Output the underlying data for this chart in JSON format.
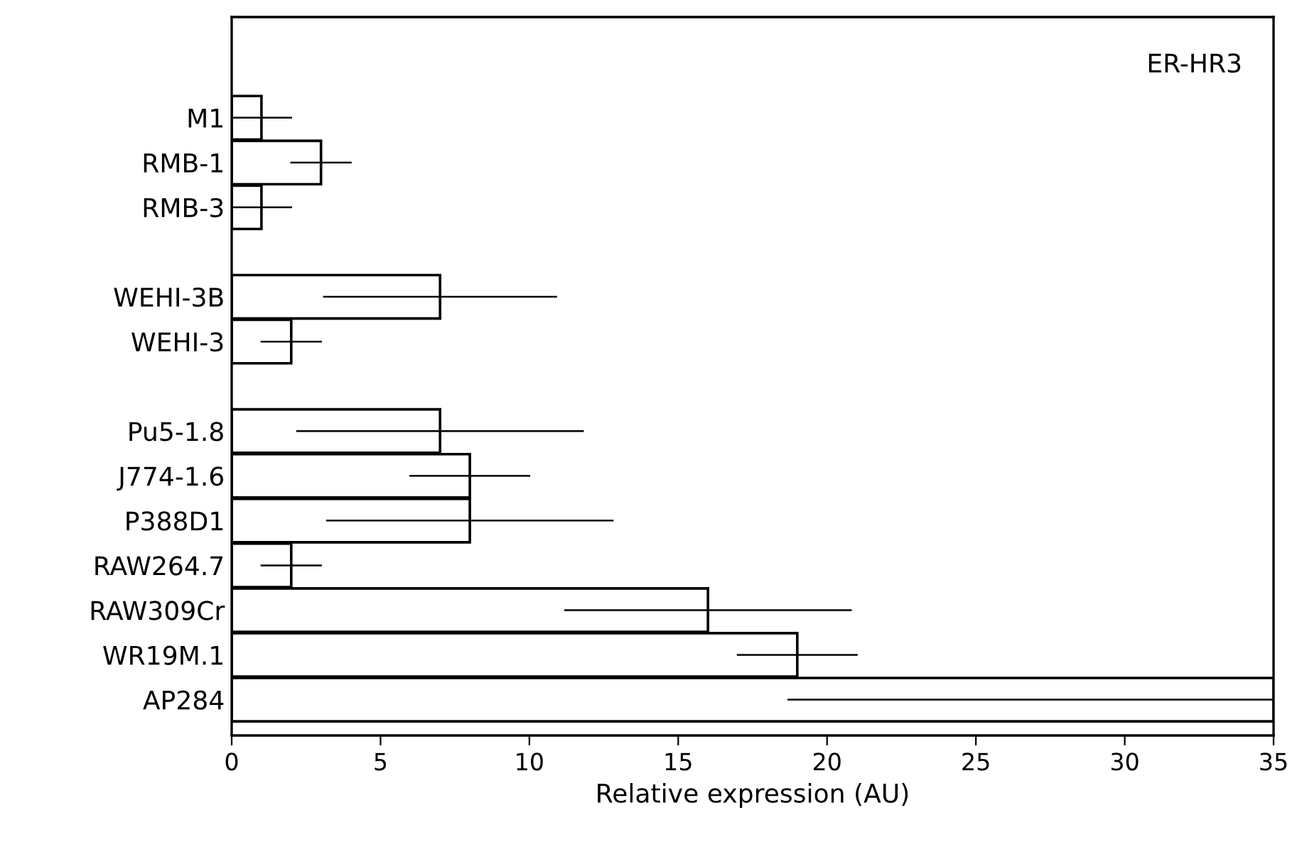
{
  "chart_data": {
    "type": "bar",
    "orientation": "horizontal",
    "xlabel": "Relative expression (AU)",
    "categories": [
      "M1",
      "RMB-1",
      "RMB-3",
      null,
      "WEHI-3B",
      "WEHI-3",
      null,
      "Pu5-1.8",
      "J774-1.6",
      "P388D1",
      "RAW264.7",
      "RAW309Cr",
      "WR19M.1",
      "AP284"
    ],
    "values": [
      1,
      3,
      1,
      null,
      7,
      2,
      null,
      7,
      8,
      8,
      2,
      16,
      19,
      35
    ],
    "errors": [
      1,
      1,
      1,
      null,
      3.9,
      1,
      null,
      4.8,
      2,
      4.8,
      1,
      4.8,
      2,
      [
        18.7,
        35
      ]
    ],
    "color": "#ffffff",
    "xlim": [
      0,
      35
    ],
    "xticks": [
      0,
      5,
      10,
      15,
      20,
      25,
      30,
      35
    ],
    "annotations": [
      "ER-HR3"
    ],
    "grid": false
  }
}
